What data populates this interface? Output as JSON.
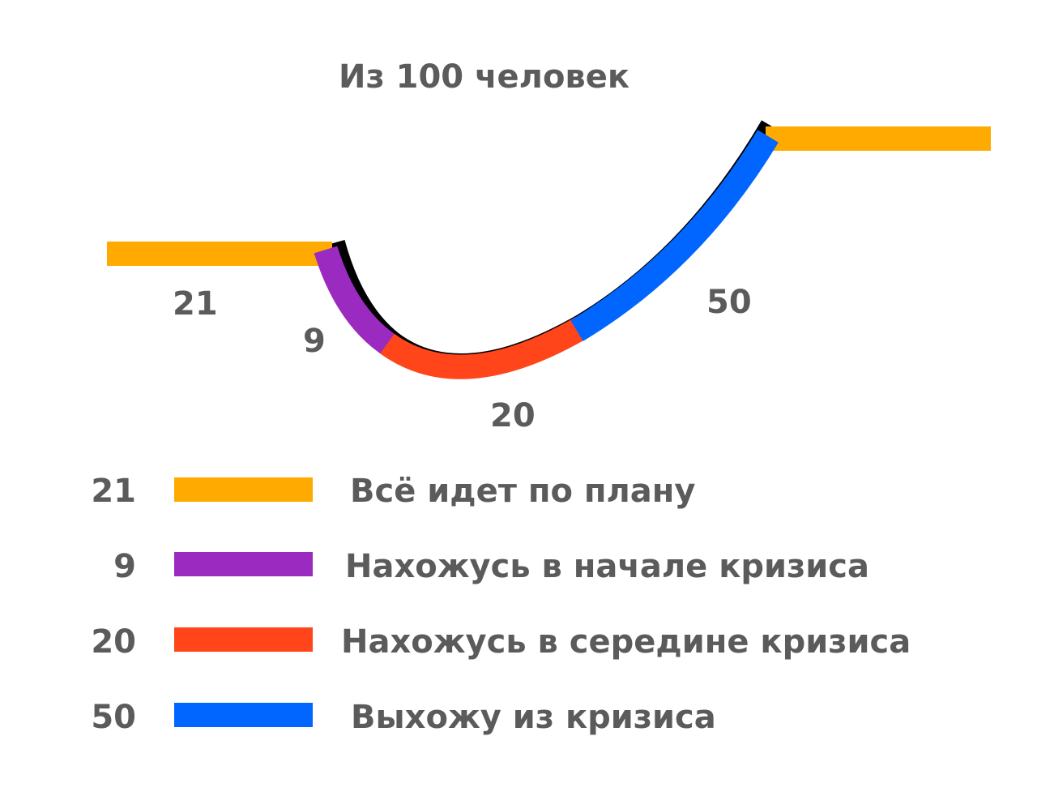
{
  "title": "Из 100 человек",
  "segments": {
    "plan": {
      "value": "21",
      "color": "#FFAA00"
    },
    "start": {
      "value": "9",
      "color": "#9B2BC0"
    },
    "middle": {
      "value": "20",
      "color": "#FF4519"
    },
    "exit": {
      "value": "50",
      "color": "#0066FF"
    }
  },
  "legend": [
    {
      "value": "21",
      "label": "Всё идет по плану",
      "color": "#FFAA00"
    },
    {
      "value": "9",
      "label": "Нахожусь в начале кризиса",
      "color": "#9B2BC0"
    },
    {
      "value": "20",
      "label": "Нахожусь в середине кризиса",
      "color": "#FF4519"
    },
    {
      "value": "50",
      "label": "Выхожу из кризиса",
      "color": "#0066FF"
    }
  ]
}
